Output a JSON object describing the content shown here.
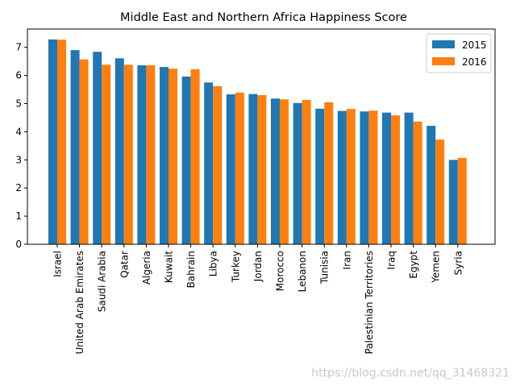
{
  "chart_data": {
    "type": "bar",
    "title": "Middle East and Northern Africa Happiness Score",
    "xlabel": "",
    "ylabel": "",
    "categories": [
      "Israel",
      "United Arab Emirates",
      "Saudi Arabia",
      "Qatar",
      "Algeria",
      "Kuwait",
      "Bahrain",
      "Libya",
      "Turkey",
      "Jordan",
      "Morocco",
      "Lebanon",
      "Tunisia",
      "Iran",
      "Palestinian Territories",
      "Iraq",
      "Egypt",
      "Yemen",
      "Syria"
    ],
    "series": [
      {
        "name": "2015",
        "color": "#1f77b4",
        "values": [
          7.28,
          6.9,
          6.84,
          6.61,
          6.36,
          6.3,
          5.96,
          5.75,
          5.33,
          5.34,
          5.18,
          5.02,
          4.82,
          4.74,
          4.72,
          4.68,
          4.68,
          4.21,
          3.0
        ]
      },
      {
        "name": "2016",
        "color": "#ff7f0e",
        "values": [
          7.27,
          6.57,
          6.38,
          6.38,
          6.36,
          6.24,
          6.22,
          5.62,
          5.39,
          5.3,
          5.15,
          5.13,
          5.05,
          4.81,
          4.75,
          4.58,
          4.36,
          3.72,
          3.07
        ]
      }
    ],
    "ylim": [
      0,
      7.65
    ],
    "yticks": [
      "0",
      "1",
      "2",
      "3",
      "4",
      "5",
      "6",
      "7"
    ],
    "legend_position": "top-right",
    "grid": false
  },
  "watermark": "https://blog.csdn.net/qq_31468321"
}
